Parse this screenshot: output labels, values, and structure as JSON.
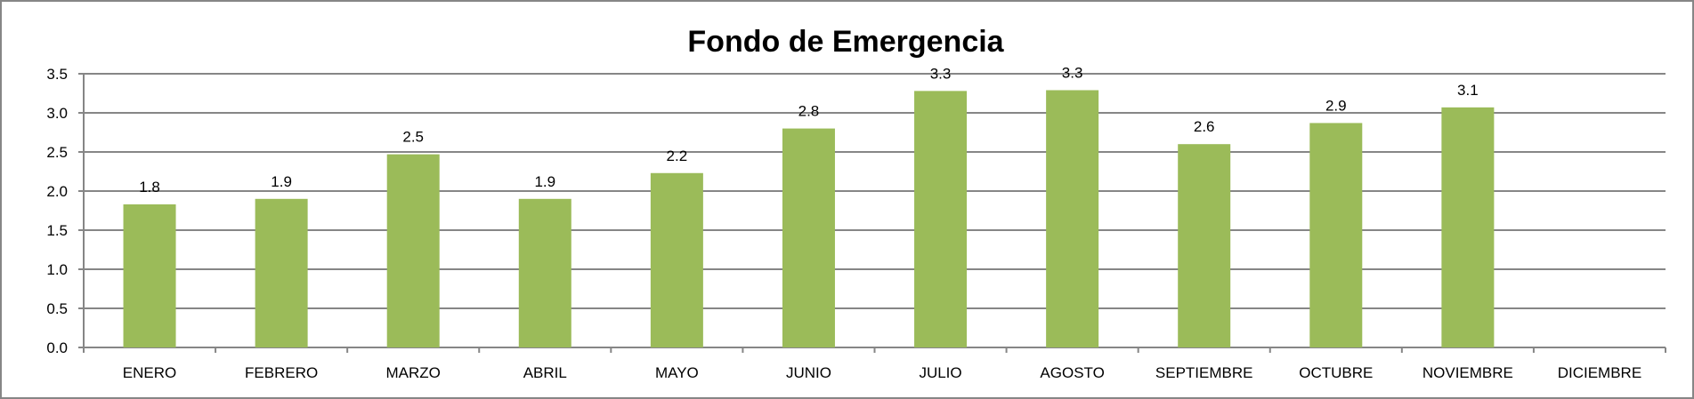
{
  "chart_data": {
    "type": "bar",
    "title": "Fondo de Emergencia",
    "xlabel": "",
    "ylabel": "",
    "categories": [
      "ENERO",
      "FEBRERO",
      "MARZO",
      "ABRIL",
      "MAYO",
      "JUNIO",
      "JULIO",
      "AGOSTO",
      "SEPTIEMBRE",
      "OCTUBRE",
      "NOVIEMBRE",
      "DICIEMBRE"
    ],
    "values": [
      1.83,
      1.9,
      2.47,
      1.9,
      2.23,
      2.8,
      3.28,
      3.29,
      2.6,
      2.87,
      3.07,
      null
    ],
    "data_labels": [
      "1.8",
      "1.9",
      "2.5",
      "1.9",
      "2.2",
      "2.8",
      "3.3",
      "3.3",
      "2.6",
      "2.9",
      "3.1",
      ""
    ],
    "ylim": [
      0,
      3.5
    ],
    "yticks": [
      "0.0",
      "0.5",
      "1.0",
      "1.5",
      "2.0",
      "2.5",
      "3.0",
      "3.5"
    ],
    "grid": true,
    "legend": "none",
    "colors": {
      "bar": "#9BBB59",
      "grid": "#868686",
      "border": "#868686"
    }
  }
}
